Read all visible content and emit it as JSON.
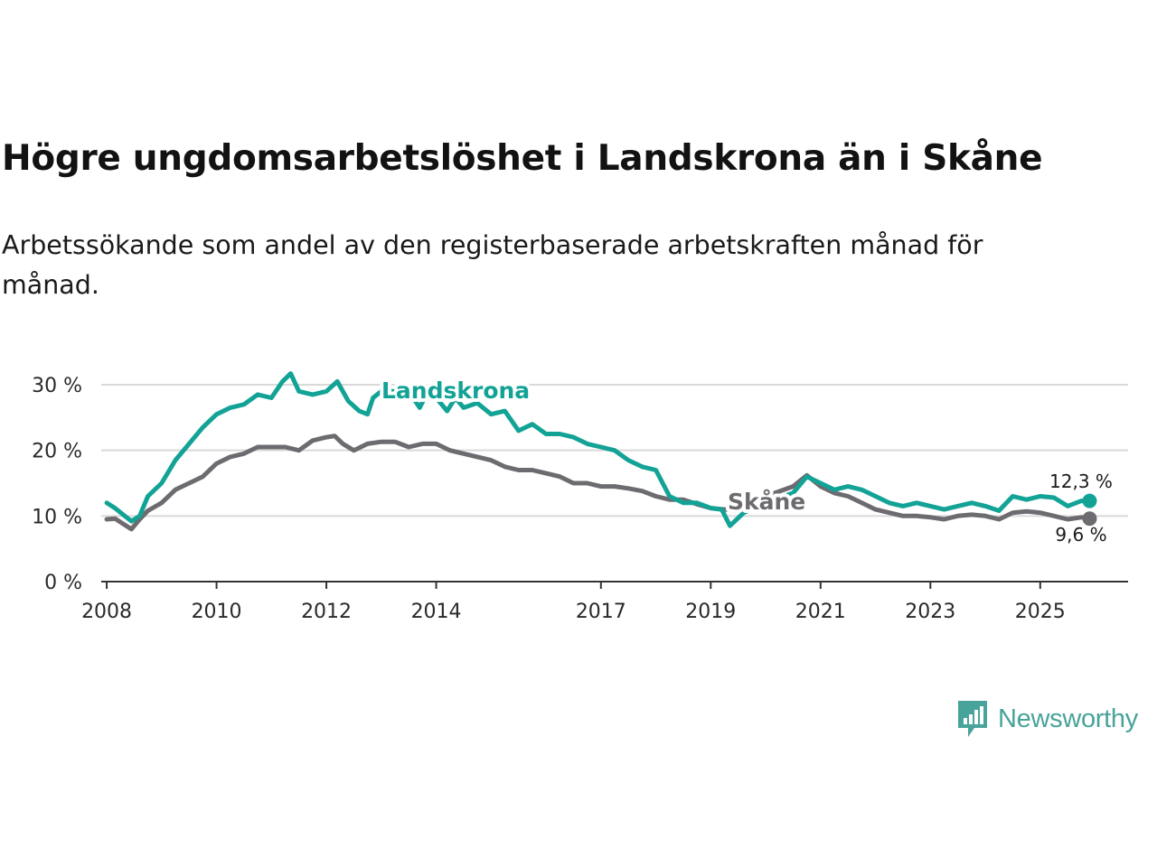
{
  "title": "Högre ungdomsarbetslöshet i Landskrona än i Skåne",
  "subtitle": "Arbetssökande som andel av den registerbaserade arbetskraften månad för månad.",
  "brand": {
    "name": "Newsworthy",
    "color": "#48a39a",
    "icon": "newsworthy-logo-icon"
  },
  "colors": {
    "landskrona": "#13a396",
    "skane": "#6d6b70",
    "grid": "#d9d9d9",
    "axis": "#333333"
  },
  "chart_data": {
    "type": "line",
    "title": "Högre ungdomsarbetslöshet i Landskrona än i Skåne",
    "xlabel": "",
    "ylabel": "",
    "xlim": [
      2007.9,
      2026.6
    ],
    "ylim": [
      0,
      30
    ],
    "grid": true,
    "x_ticks": [
      2008,
      2010,
      2012,
      2014,
      2017,
      2019,
      2021,
      2023,
      2025
    ],
    "y_ticks": [
      {
        "value": 0,
        "label": "0 %"
      },
      {
        "value": 10,
        "label": "10 %"
      },
      {
        "value": 20,
        "label": "20 %"
      },
      {
        "value": 30,
        "label": "30 %"
      }
    ],
    "series": [
      {
        "name": "Landskrona",
        "label": "Landskrona",
        "points": [
          [
            2008.0,
            12
          ],
          [
            2008.15,
            11.2
          ],
          [
            2008.3,
            10.2
          ],
          [
            2008.45,
            9.2
          ],
          [
            2008.6,
            10
          ],
          [
            2008.75,
            13
          ],
          [
            2009.0,
            15
          ],
          [
            2009.25,
            18.5
          ],
          [
            2009.5,
            21
          ],
          [
            2009.75,
            23.5
          ],
          [
            2010.0,
            25.5
          ],
          [
            2010.25,
            26.5
          ],
          [
            2010.5,
            27
          ],
          [
            2010.75,
            28.5
          ],
          [
            2011.0,
            28
          ],
          [
            2011.2,
            30.5
          ],
          [
            2011.35,
            31.7
          ],
          [
            2011.5,
            29
          ],
          [
            2011.75,
            28.5
          ],
          [
            2012.0,
            29
          ],
          [
            2012.2,
            30.5
          ],
          [
            2012.4,
            27.5
          ],
          [
            2012.6,
            26
          ],
          [
            2012.75,
            25.5
          ],
          [
            2012.85,
            28
          ],
          [
            2013.0,
            29
          ],
          [
            2013.5,
            29
          ],
          [
            2013.7,
            26.5
          ],
          [
            2013.85,
            29
          ],
          [
            2014.0,
            28
          ],
          [
            2014.2,
            26
          ],
          [
            2014.35,
            28
          ],
          [
            2014.5,
            26.5
          ],
          [
            2014.75,
            27.2
          ],
          [
            2015.0,
            25.5
          ],
          [
            2015.25,
            26
          ],
          [
            2015.5,
            23
          ],
          [
            2015.75,
            24
          ],
          [
            2016.0,
            22.5
          ],
          [
            2016.25,
            22.5
          ],
          [
            2016.5,
            22
          ],
          [
            2016.75,
            21
          ],
          [
            2017.0,
            20.5
          ],
          [
            2017.25,
            20
          ],
          [
            2017.5,
            18.5
          ],
          [
            2017.75,
            17.5
          ],
          [
            2018.0,
            17
          ],
          [
            2018.25,
            13
          ],
          [
            2018.5,
            12
          ],
          [
            2018.75,
            12
          ],
          [
            2019.0,
            11.2
          ],
          [
            2019.2,
            11
          ],
          [
            2019.35,
            8.5
          ],
          [
            2019.6,
            10.5
          ],
          [
            2020.0,
            12
          ],
          [
            2020.5,
            13.5
          ],
          [
            2020.75,
            16
          ],
          [
            2021.0,
            15
          ],
          [
            2021.25,
            14
          ],
          [
            2021.5,
            14.5
          ],
          [
            2021.75,
            14
          ],
          [
            2022.0,
            13
          ],
          [
            2022.25,
            12
          ],
          [
            2022.5,
            11.5
          ],
          [
            2022.75,
            12
          ],
          [
            2023.0,
            11.5
          ],
          [
            2023.25,
            11
          ],
          [
            2023.5,
            11.5
          ],
          [
            2023.75,
            12
          ],
          [
            2024.0,
            11.5
          ],
          [
            2024.25,
            10.8
          ],
          [
            2024.5,
            13
          ],
          [
            2024.75,
            12.5
          ],
          [
            2025.0,
            13
          ],
          [
            2025.25,
            12.8
          ],
          [
            2025.5,
            11.5
          ],
          [
            2025.75,
            12.3
          ],
          [
            2025.9,
            12.3
          ]
        ],
        "end_value": 12.3,
        "end_label": "12,3 %"
      },
      {
        "name": "Skåne",
        "label": "Skåne",
        "points": [
          [
            2008.0,
            9.5
          ],
          [
            2008.15,
            9.6
          ],
          [
            2008.3,
            8.8
          ],
          [
            2008.45,
            8
          ],
          [
            2008.6,
            9.5
          ],
          [
            2008.75,
            10.8
          ],
          [
            2009.0,
            12
          ],
          [
            2009.25,
            14
          ],
          [
            2009.5,
            15
          ],
          [
            2009.75,
            16
          ],
          [
            2010.0,
            18
          ],
          [
            2010.25,
            19
          ],
          [
            2010.5,
            19.5
          ],
          [
            2010.75,
            20.5
          ],
          [
            2011.0,
            20.5
          ],
          [
            2011.25,
            20.5
          ],
          [
            2011.5,
            20
          ],
          [
            2011.75,
            21.5
          ],
          [
            2012.0,
            22
          ],
          [
            2012.15,
            22.2
          ],
          [
            2012.3,
            21
          ],
          [
            2012.5,
            20
          ],
          [
            2012.75,
            21
          ],
          [
            2013.0,
            21.3
          ],
          [
            2013.25,
            21.3
          ],
          [
            2013.5,
            20.5
          ],
          [
            2013.75,
            21
          ],
          [
            2014.0,
            21
          ],
          [
            2014.25,
            20
          ],
          [
            2014.5,
            19.5
          ],
          [
            2014.75,
            19
          ],
          [
            2015.0,
            18.5
          ],
          [
            2015.25,
            17.5
          ],
          [
            2015.5,
            17
          ],
          [
            2015.75,
            17
          ],
          [
            2016.0,
            16.5
          ],
          [
            2016.25,
            16
          ],
          [
            2016.5,
            15
          ],
          [
            2016.75,
            15
          ],
          [
            2017.0,
            14.5
          ],
          [
            2017.25,
            14.5
          ],
          [
            2017.5,
            14.2
          ],
          [
            2017.75,
            13.8
          ],
          [
            2018.0,
            13
          ],
          [
            2018.25,
            12.5
          ],
          [
            2018.5,
            12.5
          ],
          [
            2018.75,
            11.8
          ],
          [
            2019.0,
            11.2
          ],
          [
            2019.25,
            11
          ],
          [
            2019.5,
            11
          ],
          [
            2019.75,
            11
          ],
          [
            2020.0,
            13
          ],
          [
            2020.5,
            14.5
          ],
          [
            2020.75,
            16.2
          ],
          [
            2021.0,
            14.5
          ],
          [
            2021.25,
            13.5
          ],
          [
            2021.5,
            13
          ],
          [
            2021.75,
            12
          ],
          [
            2022.0,
            11
          ],
          [
            2022.25,
            10.5
          ],
          [
            2022.5,
            10
          ],
          [
            2022.75,
            10
          ],
          [
            2023.0,
            9.8
          ],
          [
            2023.25,
            9.5
          ],
          [
            2023.5,
            10
          ],
          [
            2023.75,
            10.2
          ],
          [
            2024.0,
            10
          ],
          [
            2024.25,
            9.5
          ],
          [
            2024.5,
            10.5
          ],
          [
            2024.75,
            10.7
          ],
          [
            2025.0,
            10.5
          ],
          [
            2025.25,
            10
          ],
          [
            2025.5,
            9.5
          ],
          [
            2025.75,
            9.8
          ],
          [
            2025.9,
            9.6
          ]
        ],
        "end_value": 9.6,
        "end_label": "9,6 %"
      }
    ]
  }
}
